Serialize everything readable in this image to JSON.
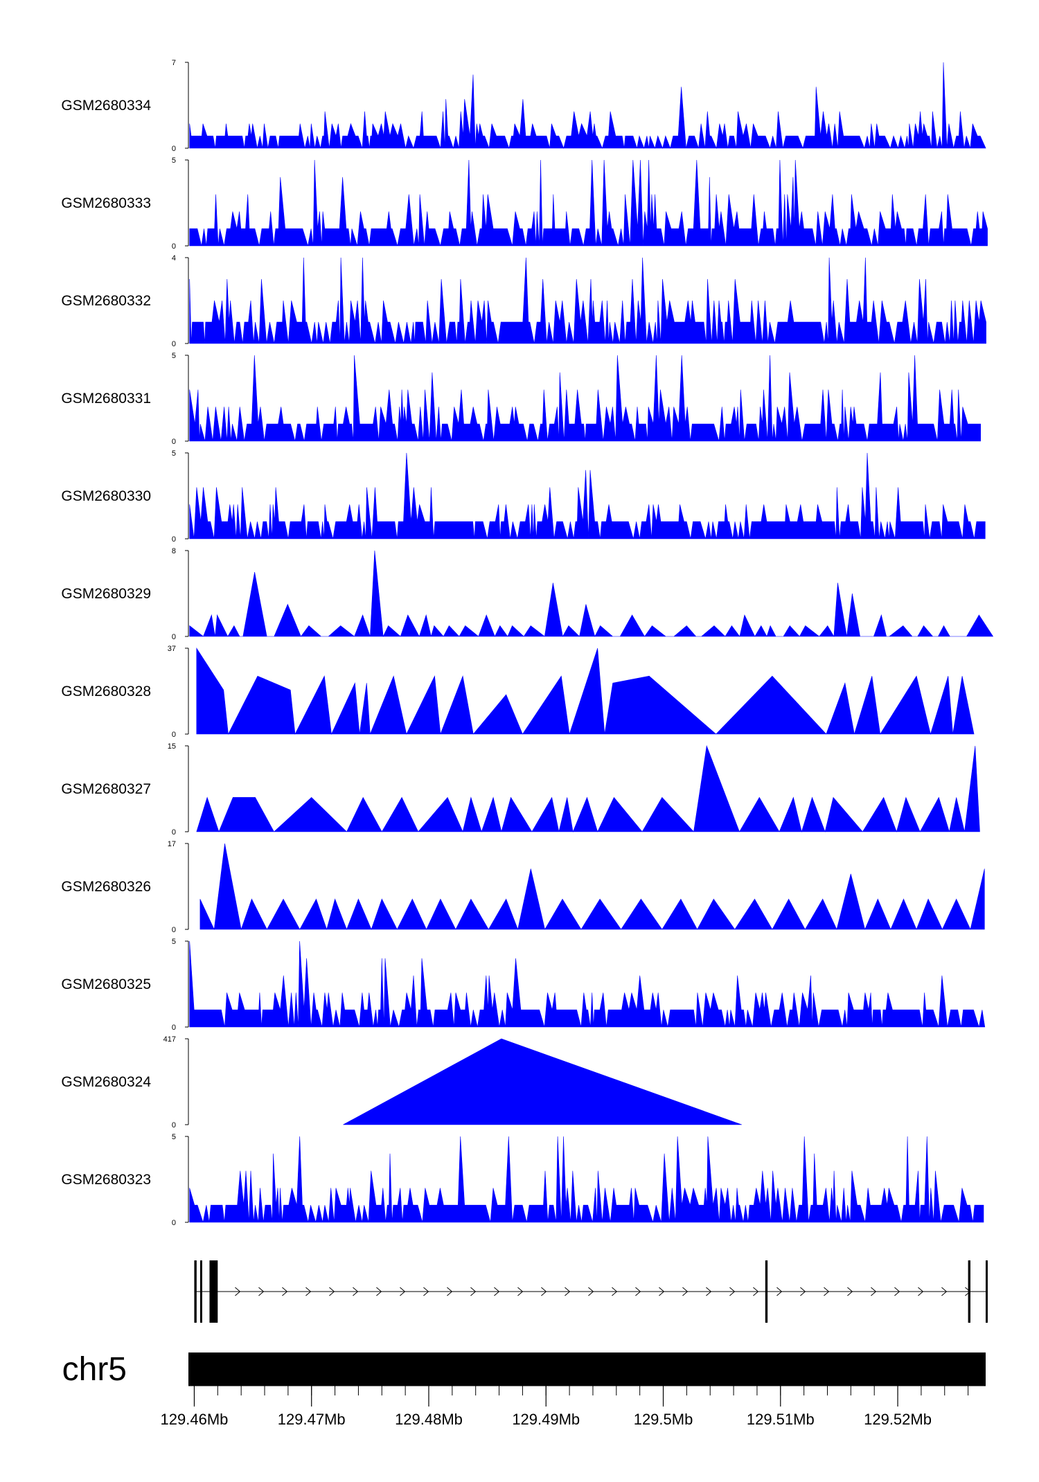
{
  "chart_data": {
    "type": "area",
    "title": "",
    "xlabel": "",
    "ylabel": "",
    "colors": {
      "signal": "#0000ff",
      "axis": "#000000",
      "ideogram": "#000000"
    },
    "x_range_mb": [
      129.4595,
      129.5275
    ],
    "x_ticks": [
      "129.46Mb",
      "129.47Mb",
      "129.48Mb",
      "129.49Mb",
      "129.5Mb",
      "129.51Mb",
      "129.52Mb"
    ],
    "x_tick_values": [
      129.46,
      129.47,
      129.48,
      129.49,
      129.5,
      129.51,
      129.52
    ],
    "chromosome": "chr5",
    "tracks": [
      {
        "name": "GSM2680334",
        "ymin": "0",
        "ymax": "7",
        "max": 7,
        "seed": 11,
        "mode": "dense"
      },
      {
        "name": "GSM2680333",
        "ymin": "0",
        "ymax": "5",
        "max": 5,
        "seed": 23,
        "mode": "dense"
      },
      {
        "name": "GSM2680332",
        "ymin": "0",
        "ymax": "4",
        "max": 4,
        "seed": 37,
        "mode": "dense"
      },
      {
        "name": "GSM2680331",
        "ymin": "0",
        "ymax": "5",
        "max": 5,
        "seed": 41,
        "mode": "dense"
      },
      {
        "name": "GSM2680330",
        "ymin": "0",
        "ymax": "5",
        "max": 5,
        "seed": 53,
        "mode": "dense"
      },
      {
        "name": "GSM2680329",
        "ymin": "0",
        "ymax": "8",
        "max": 8,
        "seed": 67,
        "mode": "medium"
      },
      {
        "name": "GSM2680328",
        "ymin": "0",
        "ymax": "37",
        "max": 37,
        "peaks": [
          [
            129.4602,
            37
          ],
          [
            129.4625,
            19
          ],
          [
            129.4654,
            25
          ],
          [
            129.4682,
            19
          ],
          [
            129.4711,
            25
          ],
          [
            129.4737,
            22
          ],
          [
            129.4747,
            22
          ],
          [
            129.477,
            25
          ],
          [
            129.4805,
            25
          ],
          [
            129.4829,
            25
          ],
          [
            129.4866,
            17
          ],
          [
            129.4913,
            25
          ],
          [
            129.4944,
            37
          ],
          [
            129.4957,
            22
          ],
          [
            129.4988,
            25
          ],
          [
            129.5093,
            25
          ],
          [
            129.5155,
            22
          ],
          [
            129.5178,
            25
          ],
          [
            129.5216,
            25
          ],
          [
            129.5243,
            25
          ],
          [
            129.5255,
            25
          ]
        ],
        "valleys": [
          129.4629,
          129.4686,
          129.4717,
          129.4741,
          129.475,
          129.4781,
          129.481,
          129.4838,
          129.488,
          129.492,
          129.495,
          129.5045,
          129.5139,
          129.5163,
          129.5185,
          129.5228,
          129.5247,
          129.5265
        ]
      },
      {
        "name": "GSM2680327",
        "ymin": "0",
        "ymax": "15",
        "max": 15,
        "peaks": [
          [
            129.4611,
            6
          ],
          [
            129.4633,
            6
          ],
          [
            129.4652,
            6
          ],
          [
            129.47,
            6
          ],
          [
            129.4744,
            6
          ],
          [
            129.4777,
            6
          ],
          [
            129.4816,
            6
          ],
          [
            129.4836,
            6
          ],
          [
            129.4855,
            6
          ],
          [
            129.487,
            6
          ],
          [
            129.4905,
            6
          ],
          [
            129.4918,
            6
          ],
          [
            129.4935,
            6
          ],
          [
            129.4958,
            6
          ],
          [
            129.4999,
            6
          ],
          [
            129.5037,
            15
          ],
          [
            129.5082,
            6
          ],
          [
            129.5111,
            6
          ],
          [
            129.5127,
            6
          ],
          [
            129.5145,
            6
          ],
          [
            129.5188,
            6
          ],
          [
            129.5207,
            6
          ],
          [
            129.5235,
            6
          ],
          [
            129.525,
            6
          ],
          [
            129.5266,
            15
          ]
        ],
        "valleys": [
          129.4602,
          129.4621,
          129.4668,
          129.473,
          129.476,
          129.4791,
          129.4829,
          129.4845,
          129.4862,
          129.4888,
          129.4911,
          129.4923,
          129.4944,
          129.4982,
          129.5026,
          129.5065,
          129.5099,
          129.5118,
          129.5138,
          129.517,
          129.5199,
          129.5219,
          129.5244,
          129.5257,
          129.527
        ]
      },
      {
        "name": "GSM2680326",
        "ymin": "0",
        "ymax": "17",
        "max": 17,
        "peaks": [
          [
            129.4605,
            6
          ],
          [
            129.4626,
            17
          ],
          [
            129.4649,
            6
          ],
          [
            129.4676,
            6
          ],
          [
            129.4704,
            6
          ],
          [
            129.472,
            6
          ],
          [
            129.474,
            6
          ],
          [
            129.476,
            6
          ],
          [
            129.4786,
            6
          ],
          [
            129.481,
            6
          ],
          [
            129.4836,
            6
          ],
          [
            129.4866,
            6
          ],
          [
            129.4887,
            12
          ],
          [
            129.4914,
            6
          ],
          [
            129.4946,
            6
          ],
          [
            129.4981,
            6
          ],
          [
            129.5015,
            6
          ],
          [
            129.5043,
            6
          ],
          [
            129.5078,
            6
          ],
          [
            129.5107,
            6
          ],
          [
            129.5136,
            6
          ],
          [
            129.516,
            11
          ],
          [
            129.5183,
            6
          ],
          [
            129.5205,
            6
          ],
          [
            129.5226,
            6
          ],
          [
            129.525,
            6
          ],
          [
            129.5274,
            12
          ]
        ],
        "valleys": [
          129.4617,
          129.464,
          129.4662,
          129.469,
          129.4713,
          129.473,
          129.4751,
          129.4773,
          129.4798,
          129.4823,
          129.4851,
          129.4876,
          129.4899,
          129.493,
          129.4964,
          129.4999,
          129.5029,
          129.5061,
          129.5093,
          129.5121,
          129.5148,
          129.5172,
          129.5194,
          129.5216,
          129.5238,
          129.5262
        ]
      },
      {
        "name": "GSM2680325",
        "ymin": "0",
        "ymax": "5",
        "max": 5,
        "seed": 79,
        "mode": "dense"
      },
      {
        "name": "GSM2680324",
        "ymin": "0",
        "ymax": "417",
        "max": 417,
        "peaks": [
          [
            129.4862,
            417
          ]
        ],
        "valleys": [
          129.4727,
          129.5067
        ]
      },
      {
        "name": "GSM2680323",
        "ymin": "0",
        "ymax": "5",
        "max": 5,
        "seed": 97,
        "mode": "dense"
      }
    ],
    "gene": {
      "line_start": 129.46,
      "line_end": 129.5275,
      "exons": [
        [
          129.46,
          129.4602
        ],
        [
          129.4605,
          129.4606
        ],
        [
          129.4613,
          129.462
        ],
        [
          129.5087,
          129.5089
        ],
        [
          129.526,
          129.5262
        ],
        [
          129.5275,
          129.5276
        ]
      ],
      "strand": "+"
    }
  }
}
